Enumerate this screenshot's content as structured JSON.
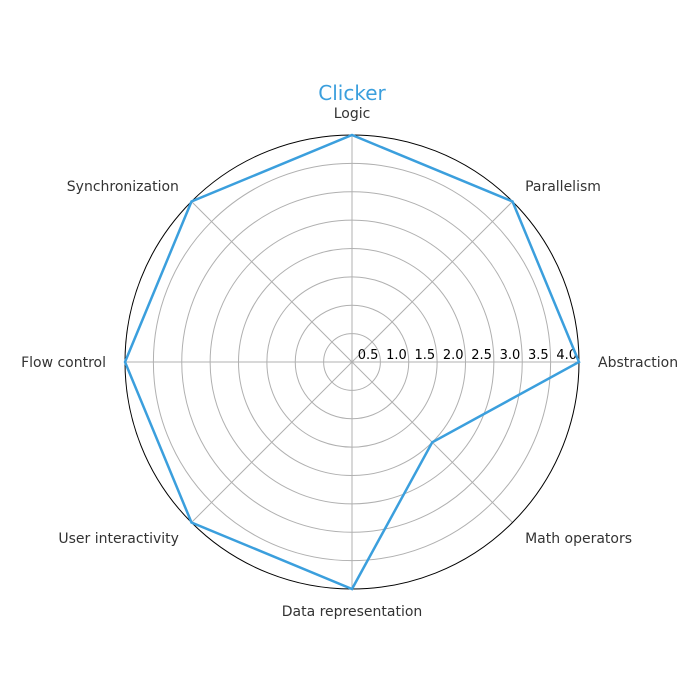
{
  "chart_data": {
    "type": "radar",
    "title": "Clicker",
    "categories": [
      "Abstraction",
      "Parallelism",
      "Logic",
      "Synchronization",
      "Flow control",
      "User interactivity",
      "Data representation",
      "Math operators"
    ],
    "values": [
      4,
      4,
      4,
      4,
      4,
      4,
      4,
      2
    ],
    "rlim": [
      0,
      4
    ],
    "r_ticks": [
      "0.5",
      "1.0",
      "1.5",
      "2.0",
      "2.5",
      "3.0",
      "3.5",
      "4.0"
    ],
    "grid": true,
    "line_color": "#3b9fdd"
  }
}
